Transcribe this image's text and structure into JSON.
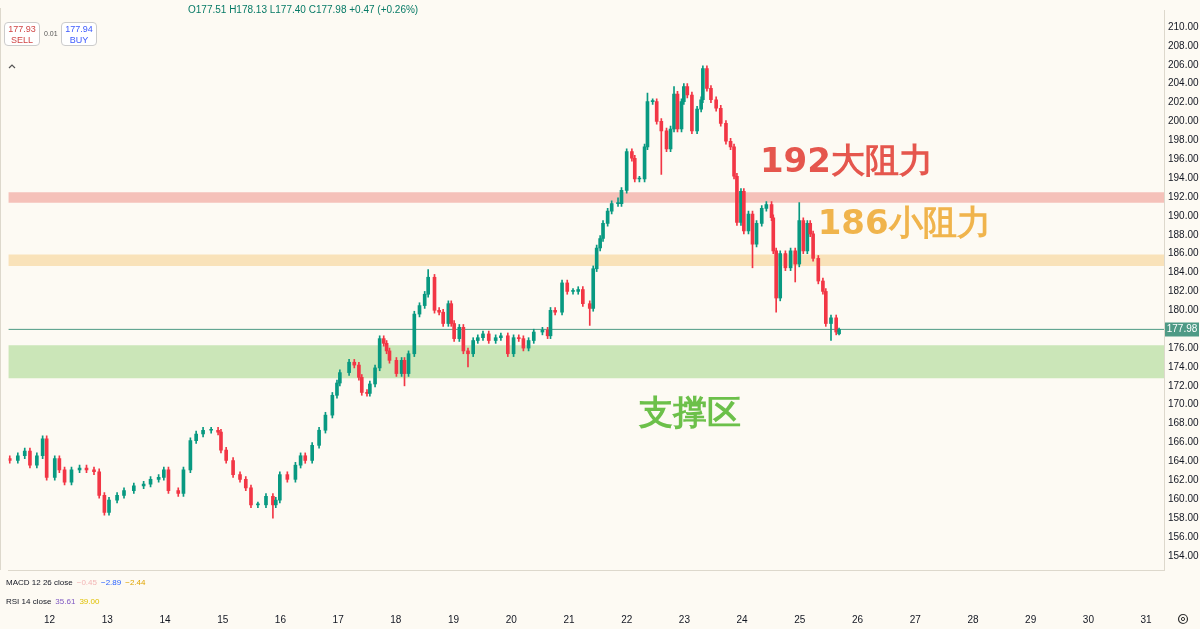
{
  "chart_data": {
    "type": "candlestick",
    "subtitle": "O177.51 H178.13 L177.40 C177.98 +0.47 (+0.26%)",
    "annotations": [
      "177.93",
      "SELL",
      "0.01",
      "177.94",
      "BUY",
      "MACD 12 26 close",
      "−0.45",
      "−2.89",
      "−2.44",
      "RSI 14 close",
      "35.61",
      "39.00"
    ],
    "x": [
      11.31,
      11.45,
      11.57,
      11.66,
      11.78,
      11.88,
      11.95,
      12.09,
      12.17,
      12.26,
      12.38,
      12.52,
      12.64,
      12.77,
      12.86,
      12.95,
      13.03,
      13.17,
      13.29,
      13.46,
      13.63,
      13.75,
      13.89,
      13.98,
      14.06,
      14.23,
      14.32,
      14.44,
      14.54,
      14.66,
      14.8,
      14.92,
      14.97,
      15.06,
      15.18,
      15.3,
      15.4,
      15.49,
      15.61,
      15.75,
      15.87,
      15.92,
      15.99,
      16.12,
      16.26,
      16.35,
      16.43,
      16.55,
      16.67,
      16.78,
      16.9,
      16.98,
      17.03,
      17.19,
      17.28,
      17.36,
      17.41,
      17.5,
      17.55,
      17.64,
      17.72,
      17.79,
      17.84,
      17.89,
      18.01,
      18.1,
      18.15,
      18.22,
      18.32,
      18.41,
      18.5,
      18.56,
      18.67,
      18.75,
      18.82,
      18.91,
      18.96,
      19.01,
      19.1,
      19.17,
      19.25,
      19.34,
      19.42,
      19.51,
      19.61,
      19.73,
      19.82,
      19.94,
      20.04,
      20.13,
      20.21,
      20.3,
      20.39,
      20.54,
      20.63,
      20.68,
      20.76,
      20.88,
      20.97,
      21.07,
      21.16,
      21.24,
      21.36,
      21.42,
      21.48,
      21.54,
      21.59,
      21.67,
      21.74,
      21.85,
      21.91,
      22.0,
      22.09,
      22.14,
      22.22,
      22.31,
      22.36,
      22.45,
      22.52,
      22.6,
      22.69,
      22.76,
      22.82,
      22.88,
      22.95,
      22.99,
      23.05,
      23.13,
      23.22,
      23.29,
      23.32,
      23.39,
      23.46,
      23.55,
      23.63,
      23.72,
      23.8,
      23.86,
      23.91,
      23.98,
      24.03,
      24.11,
      24.18,
      24.25,
      24.34,
      24.42,
      24.51,
      24.54,
      24.59,
      24.66,
      24.75,
      24.84,
      24.92,
      24.99,
      25.06,
      25.13,
      25.18,
      25.23,
      25.32,
      25.4,
      25.45,
      25.54,
      25.63,
      25.68
    ],
    "ohlc": [
      [
        164.3,
        164.6,
        163.8,
        164.1
      ],
      [
        164.1,
        164.9,
        163.8,
        164.6
      ],
      [
        164.6,
        165.4,
        164.3,
        165.1
      ],
      [
        165.1,
        165.4,
        163.3,
        163.6
      ],
      [
        163.6,
        164.9,
        163.3,
        164.6
      ],
      [
        164.6,
        166.7,
        164.3,
        166.4
      ],
      [
        166.4,
        166.7,
        162.0,
        162.3
      ],
      [
        162.3,
        164.6,
        162.0,
        164.3
      ],
      [
        164.3,
        164.6,
        162.8,
        163.1
      ],
      [
        163.1,
        163.4,
        161.5,
        161.8
      ],
      [
        161.8,
        163.4,
        161.5,
        163.1
      ],
      [
        163.1,
        163.6,
        162.8,
        163.3
      ],
      [
        163.3,
        163.6,
        162.8,
        163.1
      ],
      [
        163.1,
        163.4,
        162.6,
        162.9
      ],
      [
        162.9,
        163.2,
        160.1,
        160.4
      ],
      [
        160.4,
        160.7,
        158.3,
        158.6
      ],
      [
        158.6,
        160.2,
        158.3,
        159.9
      ],
      [
        159.9,
        160.7,
        159.6,
        160.4
      ],
      [
        160.4,
        161.2,
        160.1,
        160.9
      ],
      [
        160.9,
        161.7,
        160.6,
        161.4
      ],
      [
        161.4,
        161.9,
        161.1,
        161.6
      ],
      [
        161.6,
        162.4,
        161.3,
        162.1
      ],
      [
        162.1,
        162.6,
        161.8,
        162.3
      ],
      [
        162.3,
        163.4,
        162.0,
        163.1
      ],
      [
        163.1,
        163.4,
        160.6,
        160.9
      ],
      [
        160.9,
        161.2,
        160.3,
        160.6
      ],
      [
        160.6,
        163.4,
        160.3,
        163.1
      ],
      [
        163.1,
        166.5,
        162.8,
        166.2
      ],
      [
        166.2,
        167.2,
        165.9,
        166.9
      ],
      [
        166.9,
        167.6,
        166.6,
        167.3
      ],
      [
        167.3,
        167.6,
        167.0,
        167.3
      ],
      [
        167.3,
        167.6,
        166.8,
        167.1
      ],
      [
        167.1,
        167.4,
        164.9,
        165.2
      ],
      [
        165.2,
        165.5,
        163.8,
        164.1
      ],
      [
        164.1,
        164.4,
        162.3,
        162.6
      ],
      [
        162.6,
        162.9,
        161.8,
        162.1
      ],
      [
        162.1,
        162.4,
        160.9,
        161.2
      ],
      [
        161.2,
        161.5,
        159.1,
        159.4
      ],
      [
        159.4,
        159.7,
        159.1,
        159.4
      ],
      [
        159.4,
        160.6,
        159.1,
        160.3
      ],
      [
        160.3,
        160.6,
        158.0,
        159.4
      ],
      [
        159.4,
        160.2,
        159.1,
        159.9
      ],
      [
        159.9,
        162.9,
        159.6,
        162.6
      ],
      [
        162.6,
        162.9,
        161.8,
        162.1
      ],
      [
        162.1,
        163.9,
        161.8,
        163.6
      ],
      [
        163.6,
        164.9,
        163.3,
        164.6
      ],
      [
        164.6,
        164.9,
        163.8,
        164.1
      ],
      [
        164.1,
        166.0,
        163.8,
        165.7
      ],
      [
        165.7,
        167.6,
        165.4,
        167.3
      ],
      [
        167.3,
        169.2,
        167.0,
        168.9
      ],
      [
        168.9,
        171.3,
        168.6,
        171.0
      ],
      [
        171.0,
        172.6,
        170.7,
        172.3
      ],
      [
        172.3,
        173.7,
        172.0,
        173.4
      ],
      [
        173.4,
        174.8,
        173.1,
        174.5
      ],
      [
        174.5,
        174.8,
        173.9,
        174.2
      ],
      [
        174.2,
        174.5,
        172.6,
        172.9
      ],
      [
        172.9,
        173.2,
        171.0,
        171.3
      ],
      [
        171.3,
        171.6,
        170.9,
        171.2
      ],
      [
        171.2,
        172.5,
        170.9,
        172.2
      ],
      [
        172.2,
        174.2,
        171.9,
        173.9
      ],
      [
        173.9,
        177.3,
        173.6,
        177.0
      ],
      [
        177.0,
        177.3,
        176.2,
        176.5
      ],
      [
        176.5,
        176.8,
        175.4,
        175.7
      ],
      [
        175.7,
        176.0,
        174.4,
        174.7
      ],
      [
        174.7,
        175.0,
        173.0,
        173.3
      ],
      [
        173.3,
        175.0,
        173.0,
        174.7
      ],
      [
        174.7,
        175.0,
        172.0,
        173.3
      ],
      [
        173.3,
        175.7,
        173.0,
        175.4
      ],
      [
        175.4,
        179.9,
        175.1,
        179.6
      ],
      [
        179.6,
        180.8,
        179.3,
        180.5
      ],
      [
        180.5,
        182.0,
        180.2,
        181.7
      ],
      [
        181.7,
        184.3,
        181.4,
        183.5
      ],
      [
        183.5,
        183.8,
        179.7,
        180.0
      ],
      [
        180.0,
        180.3,
        179.5,
        179.8
      ],
      [
        179.8,
        180.1,
        178.3,
        178.6
      ],
      [
        178.6,
        181.0,
        178.3,
        180.7
      ],
      [
        180.7,
        181.0,
        178.3,
        178.6
      ],
      [
        178.6,
        178.9,
        176.7,
        177.0
      ],
      [
        177.0,
        178.5,
        176.7,
        178.2
      ],
      [
        178.2,
        178.5,
        175.4,
        175.7
      ],
      [
        175.7,
        176.0,
        174.0,
        175.4
      ],
      [
        175.4,
        177.1,
        175.1,
        176.8
      ],
      [
        176.8,
        177.4,
        176.5,
        177.1
      ],
      [
        177.1,
        177.8,
        176.8,
        177.5
      ],
      [
        177.5,
        177.8,
        176.5,
        176.8
      ],
      [
        176.8,
        177.4,
        176.5,
        177.1
      ],
      [
        177.1,
        177.6,
        176.8,
        177.3
      ],
      [
        177.3,
        177.6,
        175.1,
        175.4
      ],
      [
        175.4,
        177.4,
        175.1,
        177.1
      ],
      [
        177.1,
        177.4,
        176.7,
        177.0
      ],
      [
        177.0,
        177.3,
        175.7,
        176.0
      ],
      [
        176.0,
        177.1,
        175.7,
        176.8
      ],
      [
        176.8,
        178.0,
        176.5,
        177.7
      ],
      [
        177.7,
        178.2,
        177.4,
        177.9
      ],
      [
        177.9,
        178.2,
        177.0,
        177.3
      ],
      [
        177.3,
        180.3,
        177.0,
        180.0
      ],
      [
        180.0,
        180.3,
        179.5,
        179.8
      ],
      [
        179.8,
        183.2,
        179.5,
        182.9
      ],
      [
        182.9,
        183.2,
        181.7,
        182.0
      ],
      [
        182.0,
        182.3,
        181.7,
        182.0
      ],
      [
        182.0,
        182.5,
        181.7,
        182.2
      ],
      [
        182.2,
        182.5,
        180.4,
        180.7
      ],
      [
        180.7,
        181.0,
        178.4,
        180.2
      ],
      [
        180.2,
        184.7,
        179.9,
        184.4
      ],
      [
        184.4,
        186.9,
        184.1,
        186.6
      ],
      [
        186.6,
        187.9,
        186.3,
        187.6
      ],
      [
        187.6,
        189.5,
        187.3,
        189.2
      ],
      [
        189.2,
        190.8,
        188.9,
        190.5
      ],
      [
        190.5,
        191.6,
        190.2,
        191.3
      ],
      [
        191.3,
        191.9,
        191.0,
        191.3
      ],
      [
        191.3,
        193.0,
        191.0,
        192.7
      ],
      [
        192.7,
        197.1,
        192.4,
        196.8
      ],
      [
        196.8,
        197.1,
        195.8,
        196.1
      ],
      [
        196.1,
        196.4,
        193.6,
        193.9
      ],
      [
        193.9,
        194.2,
        193.6,
        193.9
      ],
      [
        193.9,
        197.6,
        193.6,
        197.3
      ],
      [
        197.3,
        203.0,
        197.0,
        202.1
      ],
      [
        202.1,
        202.4,
        201.8,
        202.1
      ],
      [
        202.1,
        202.4,
        199.7,
        200.0
      ],
      [
        200.0,
        200.3,
        194.4,
        199.0
      ],
      [
        199.0,
        199.3,
        196.8,
        197.1
      ],
      [
        197.1,
        199.5,
        196.8,
        199.2
      ],
      [
        199.2,
        203.7,
        198.9,
        202.9
      ],
      [
        202.9,
        203.2,
        198.9,
        199.2
      ],
      [
        199.2,
        202.4,
        198.9,
        202.1
      ],
      [
        202.1,
        204.0,
        201.8,
        203.7
      ],
      [
        203.7,
        204.0,
        202.5,
        202.8
      ],
      [
        202.8,
        203.1,
        198.7,
        199.0
      ],
      [
        199.0,
        201.6,
        198.7,
        201.3
      ],
      [
        201.3,
        202.6,
        201.0,
        202.3
      ],
      [
        202.3,
        205.9,
        202.0,
        205.6
      ],
      [
        205.6,
        205.9,
        203.2,
        203.5
      ],
      [
        203.5,
        203.8,
        202.0,
        202.3
      ],
      [
        202.3,
        202.6,
        201.1,
        201.4
      ],
      [
        201.4,
        201.7,
        199.5,
        199.8
      ],
      [
        199.8,
        200.1,
        197.6,
        197.9
      ],
      [
        197.9,
        198.2,
        197.0,
        197.3
      ],
      [
        197.3,
        197.6,
        193.9,
        194.2
      ],
      [
        194.2,
        194.5,
        189.0,
        189.3
      ],
      [
        189.3,
        192.9,
        189.0,
        192.6
      ],
      [
        192.6,
        192.9,
        188.1,
        188.4
      ],
      [
        188.4,
        190.5,
        188.1,
        190.2
      ],
      [
        190.2,
        190.5,
        184.5,
        187.0
      ],
      [
        187.0,
        189.5,
        186.7,
        189.2
      ],
      [
        189.2,
        191.1,
        188.9,
        190.8
      ],
      [
        190.8,
        191.5,
        190.5,
        191.2
      ],
      [
        191.2,
        191.5,
        189.5,
        189.8
      ],
      [
        189.8,
        190.1,
        186.0,
        186.3
      ],
      [
        186.3,
        186.6,
        179.8,
        181.3
      ],
      [
        181.3,
        186.3,
        181.0,
        186.0
      ],
      [
        186.0,
        186.3,
        184.2,
        184.5
      ],
      [
        184.5,
        186.6,
        184.2,
        186.3
      ],
      [
        186.3,
        186.6,
        183.0,
        184.9
      ],
      [
        184.9,
        191.4,
        184.6,
        189.5
      ],
      [
        189.5,
        189.8,
        186.0,
        186.3
      ],
      [
        186.3,
        189.5,
        186.0,
        189.2
      ],
      [
        189.2,
        189.5,
        187.8,
        188.1
      ],
      [
        188.1,
        188.4,
        185.2,
        185.5
      ],
      [
        185.5,
        185.8,
        182.8,
        183.1
      ],
      [
        183.1,
        183.4,
        181.7,
        182.0
      ],
      [
        182.0,
        182.3,
        178.3,
        178.6
      ],
      [
        178.6,
        179.5,
        176.8,
        179.2
      ],
      [
        179.2,
        179.5,
        177.4,
        177.7
      ],
      [
        177.51,
        178.13,
        177.4,
        177.98
      ]
    ],
    "xlim": [
      11.29,
      31.31
    ],
    "xticks": [
      12,
      13,
      14,
      15,
      16,
      17,
      18,
      19,
      20,
      21,
      22,
      23,
      24,
      25,
      26,
      27,
      28,
      29,
      30,
      31
    ],
    "ylim": [
      152.5,
      211.8
    ],
    "yticks": [
      {
        "value": 154,
        "label": "154.00"
      },
      {
        "value": 156,
        "label": "156.00"
      },
      {
        "value": 158,
        "label": "158.00"
      },
      {
        "value": 160,
        "label": "160.00"
      },
      {
        "value": 162,
        "label": "162.00"
      },
      {
        "value": 164,
        "label": "164.00"
      },
      {
        "value": 166,
        "label": "166.00"
      },
      {
        "value": 168,
        "label": "168.00"
      },
      {
        "value": 170,
        "label": "170.00"
      },
      {
        "value": 172,
        "label": "172.00"
      },
      {
        "value": 174,
        "label": "174.00"
      },
      {
        "value": 176,
        "label": "176.00"
      },
      {
        "value": 180,
        "label": "180.00"
      },
      {
        "value": 182,
        "label": "182.00"
      },
      {
        "value": 184,
        "label": "184.00"
      },
      {
        "value": 186,
        "label": "186.00"
      },
      {
        "value": 188,
        "label": "188.00"
      },
      {
        "value": 190,
        "label": "190.00"
      },
      {
        "value": 192,
        "label": "192.00"
      },
      {
        "value": 194,
        "label": "194.00"
      },
      {
        "value": 196,
        "label": "196.00"
      },
      {
        "value": 198,
        "label": "198.00"
      },
      {
        "value": 200,
        "label": "200.00"
      },
      {
        "value": 202,
        "label": "202.00"
      },
      {
        "value": 204,
        "label": "204.00"
      },
      {
        "value": 206,
        "label": "206.00"
      },
      {
        "value": 208,
        "label": "208.00"
      },
      {
        "value": 210,
        "label": "210.00"
      }
    ],
    "ref_lines": [
      {
        "axis": "y",
        "value": 177.98,
        "label": "177.98",
        "color": "#4e9a85"
      }
    ],
    "bands": [
      {
        "axis": "y",
        "from": 191.4,
        "to": 192.5,
        "label": "192大阻力",
        "color": "#e5564d"
      },
      {
        "axis": "y",
        "from": 184.7,
        "to": 185.9,
        "label": "186小阻力",
        "color": "#f0b44c"
      },
      {
        "axis": "y",
        "from": 172.8,
        "to": 176.3,
        "label": "支撑区",
        "color": "#6cc04a"
      }
    ]
  }
}
